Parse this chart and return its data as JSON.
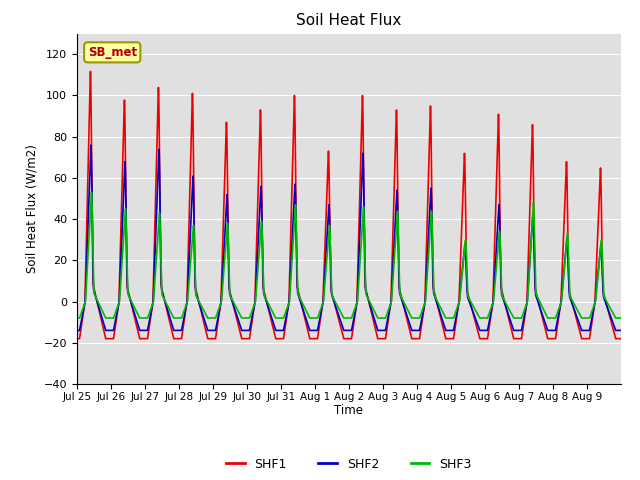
{
  "title": "Soil Heat Flux",
  "ylabel": "Soil Heat Flux (W/m2)",
  "xlabel": "Time",
  "ylim": [
    -40,
    130
  ],
  "yticks": [
    -40,
    -20,
    0,
    20,
    40,
    60,
    80,
    100,
    120
  ],
  "fig_bg_color": "#ffffff",
  "plot_bg_color": "#e0e0e0",
  "grid_color": "#ffffff",
  "line_colors": {
    "SHF1": "#ee0000",
    "SHF2": "#0000cc",
    "SHF3": "#00bb00"
  },
  "line_widths": {
    "SHF1": 1.2,
    "SHF2": 1.2,
    "SHF3": 1.2
  },
  "annotation_text": "SB_met",
  "annotation_bg": "#ffffaa",
  "annotation_border": "#999900",
  "num_days": 16,
  "tick_labels": [
    "Jul 25",
    "Jul 26",
    "Jul 27",
    "Jul 28",
    "Jul 29",
    "Jul 30",
    "Jul 31",
    "Aug 1",
    "Aug 2",
    "Aug 3",
    "Aug 4",
    "Aug 5",
    "Aug 6",
    "Aug 7",
    "Aug 8",
    "Aug 9"
  ],
  "day_peaks_shf1": [
    112,
    98,
    104,
    101,
    87,
    93,
    100,
    73,
    100,
    93,
    95,
    72,
    91,
    86,
    68,
    65
  ],
  "day_peaks_shf2": [
    76,
    68,
    74,
    61,
    52,
    56,
    57,
    47,
    72,
    54,
    55,
    28,
    47,
    43,
    31,
    28
  ],
  "day_peaks_shf3": [
    53,
    45,
    43,
    37,
    38,
    39,
    47,
    37,
    46,
    44,
    44,
    30,
    34,
    48,
    33,
    30
  ],
  "night_min_shf1": -18,
  "night_min_shf2": -14,
  "night_min_shf3": -8,
  "samples_per_day": 288
}
